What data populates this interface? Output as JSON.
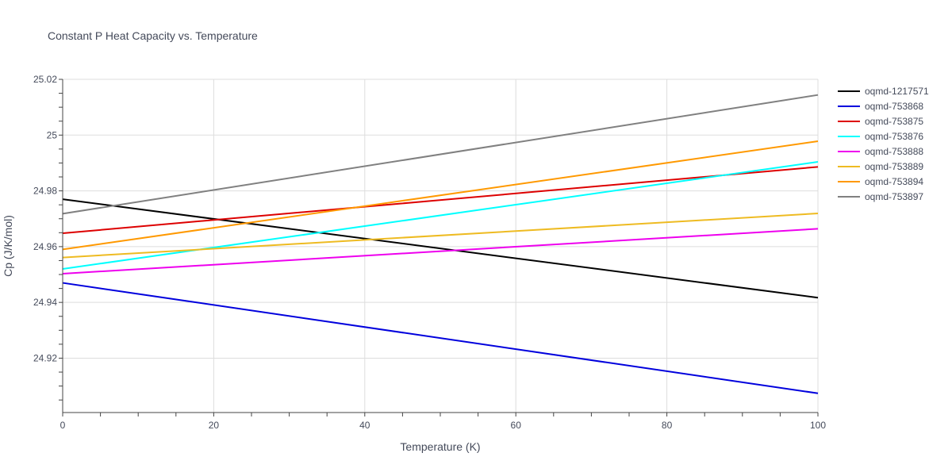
{
  "chart_data": {
    "type": "line",
    "title": "Constant P Heat Capacity vs. Temperature",
    "xlabel": "Temperature (K)",
    "ylabel": "Cp (J/K/mol)",
    "xlim": [
      0,
      100
    ],
    "ylim": [
      24.9005,
      25.02
    ],
    "x_ticks": [
      0,
      20,
      40,
      60,
      80,
      100
    ],
    "y_ticks": [
      24.92,
      24.94,
      24.96,
      24.98,
      25,
      25.02
    ],
    "x_tick_labels": [
      "0",
      "20",
      "40",
      "60",
      "80",
      "100"
    ],
    "y_tick_labels": [
      "24.92",
      "24.94",
      "24.96",
      "24.98",
      "25",
      "25.02"
    ],
    "grid": true,
    "legend_position": "right",
    "series": [
      {
        "name": "oqmd-1217571",
        "color": "#000000",
        "x": [
          0,
          100
        ],
        "values": [
          24.977,
          24.9417
        ]
      },
      {
        "name": "oqmd-753868",
        "color": "#0000dd",
        "x": [
          0,
          100
        ],
        "values": [
          24.947,
          24.9074
        ]
      },
      {
        "name": "oqmd-753875",
        "color": "#dd0000",
        "x": [
          0,
          100
        ],
        "values": [
          24.9648,
          24.9886
        ]
      },
      {
        "name": "oqmd-753876",
        "color": "#00ffff",
        "x": [
          0,
          100
        ],
        "values": [
          24.952,
          24.9904
        ]
      },
      {
        "name": "oqmd-753888",
        "color": "#ee00ee",
        "x": [
          0,
          100
        ],
        "values": [
          24.9503,
          24.9664
        ]
      },
      {
        "name": "oqmd-753889",
        "color": "#eebb22",
        "x": [
          0,
          100
        ],
        "values": [
          24.9561,
          24.9719
        ]
      },
      {
        "name": "oqmd-753894",
        "color": "#ff9900",
        "x": [
          0,
          100
        ],
        "values": [
          24.959,
          24.9978
        ]
      },
      {
        "name": "oqmd-753897",
        "color": "#808080",
        "x": [
          0,
          100
        ],
        "values": [
          24.9718,
          25.0144
        ]
      }
    ]
  }
}
